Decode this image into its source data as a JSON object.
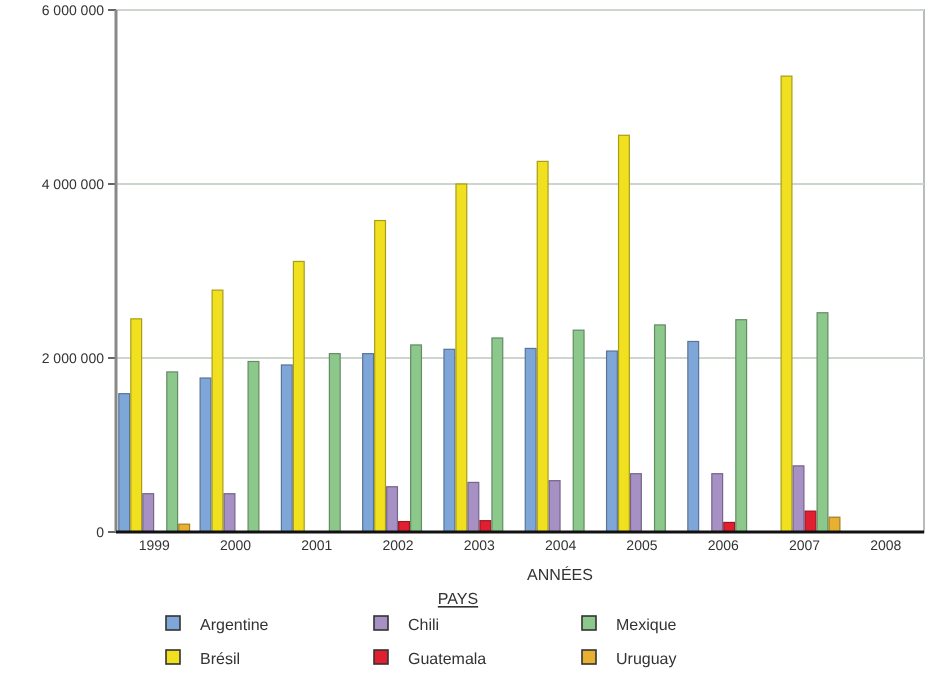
{
  "chart_data": {
    "type": "bar",
    "xlabel": "ANNÉES",
    "legend_title": "PAYS",
    "legend": "bottom",
    "grid": "y",
    "categories": [
      "1999",
      "2000",
      "2001",
      "2002",
      "2003",
      "2004",
      "2005",
      "2006",
      "2007",
      "2008"
    ],
    "ylim": [
      0,
      6000000
    ],
    "yticks": [
      {
        "value": 0,
        "label": "0"
      },
      {
        "value": 2000000,
        "label": "2 000 000"
      },
      {
        "value": 4000000,
        "label": "4 000 000"
      },
      {
        "value": 6000000,
        "label": "6 000 000"
      }
    ],
    "series": [
      {
        "name": "Argentine",
        "color": "#7fa6d8",
        "values": [
          1590000,
          1770000,
          1920000,
          2050000,
          2100000,
          2110000,
          2080000,
          2190000,
          null,
          null
        ]
      },
      {
        "name": "Brésil",
        "color": "#f0e020",
        "values": [
          2450000,
          2780000,
          3110000,
          3580000,
          4000000,
          4260000,
          4560000,
          null,
          5240000,
          null
        ]
      },
      {
        "name": "Chili",
        "color": "#a690c4",
        "values": [
          440000,
          440000,
          null,
          520000,
          570000,
          590000,
          670000,
          670000,
          760000,
          null
        ]
      },
      {
        "name": "Guatemala",
        "color": "#e02030",
        "values": [
          null,
          null,
          null,
          120000,
          130000,
          null,
          null,
          110000,
          240000,
          null
        ]
      },
      {
        "name": "Mexique",
        "color": "#8cc88c",
        "values": [
          1840000,
          1960000,
          2050000,
          2150000,
          2230000,
          2320000,
          2380000,
          2440000,
          2520000,
          null
        ]
      },
      {
        "name": "Uruguay",
        "color": "#e8b030",
        "values": [
          90000,
          null,
          null,
          null,
          null,
          null,
          null,
          null,
          170000,
          null
        ]
      }
    ]
  }
}
